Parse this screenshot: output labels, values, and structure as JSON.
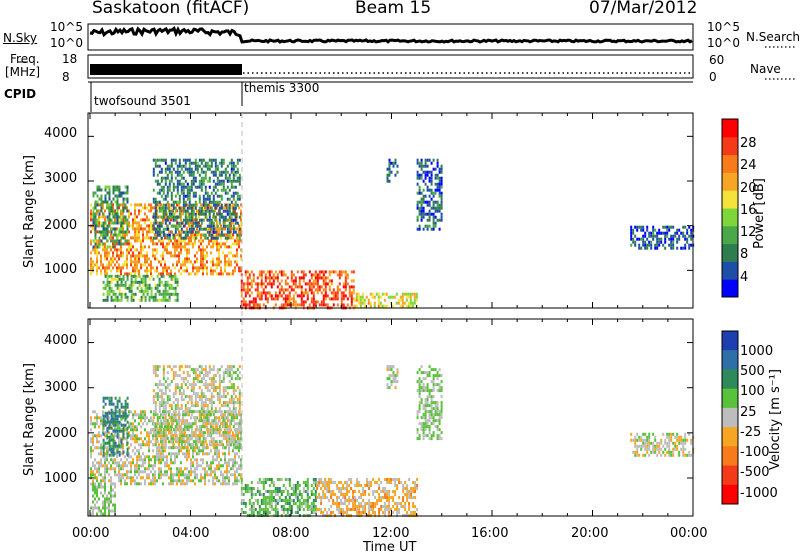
{
  "header": {
    "station": "Saskatoon (fitACF)",
    "beam": "Beam 15",
    "date": "07/Mar/2012"
  },
  "strips": {
    "nsky_label": "N.Sky",
    "nsky_top": "10^5",
    "nsky_bottom": "10^0",
    "nsearch_label": "N.Search",
    "nsearch_top": "10^5",
    "nsearch_bottom": "10^0",
    "freq_label_1": "Freq.",
    "freq_label_2": "[MHz]",
    "freq_top": "18",
    "freq_bottom": "8",
    "nave_label": "Nave",
    "nave_top": "60",
    "nave_bottom": "0",
    "cpid_label": "CPID",
    "cpid_modes": [
      {
        "name": "twofsound 3501",
        "start_hour": 0,
        "end_hour": 6
      },
      {
        "name": "themis 3300",
        "start_hour": 6,
        "end_hour": 24
      }
    ]
  },
  "chart_data": [
    {
      "type": "heatmap",
      "panel": "power",
      "ylabel": "Slant Range [km]",
      "ylim": [
        180,
        4500
      ],
      "yticks": [
        "1000",
        "2000",
        "3000",
        "4000"
      ],
      "colorbar_label": "Power [dB]",
      "colorbar_ticks": [
        "4",
        "8",
        "12",
        "16",
        "20",
        "24",
        "28"
      ],
      "colorbar_range": [
        0,
        32
      ],
      "colors": [
        "#0000ff",
        "#1e4fa8",
        "#2e7d4f",
        "#4aa84a",
        "#7fd63a",
        "#f6e33a",
        "#f6a623",
        "#f77b1a",
        "#f53a1a",
        "#ff0000"
      ],
      "regions": [
        {
          "t0": 0.0,
          "t1": 6.0,
          "r0": 900,
          "r1": 2500,
          "value": 22
        },
        {
          "t0": 0.1,
          "t1": 1.5,
          "r0": 1500,
          "r1": 2900,
          "value": 10
        },
        {
          "t0": 0.5,
          "t1": 3.5,
          "r0": 350,
          "r1": 900,
          "value": 12
        },
        {
          "t0": 2.5,
          "t1": 6.0,
          "r0": 1700,
          "r1": 3500,
          "value": 8
        },
        {
          "t0": 6.0,
          "t1": 10.5,
          "r0": 180,
          "r1": 1000,
          "value": 26
        },
        {
          "t0": 10.5,
          "t1": 13.0,
          "r0": 180,
          "r1": 500,
          "value": 18
        },
        {
          "t0": 11.8,
          "t1": 12.2,
          "r0": 3000,
          "r1": 3500,
          "value": 6
        },
        {
          "t0": 13.0,
          "t1": 14.0,
          "r0": 1900,
          "r1": 3500,
          "value": 6
        },
        {
          "t0": 21.5,
          "t1": 24.0,
          "r0": 1500,
          "r1": 2000,
          "value": 5
        }
      ]
    },
    {
      "type": "heatmap",
      "panel": "velocity",
      "ylabel": "Slant Range [km]",
      "ylim": [
        180,
        4500
      ],
      "yticks": [
        "1000",
        "2000",
        "3000",
        "4000"
      ],
      "colorbar_label": "Velocity [m s⁻¹]",
      "colorbar_ticks": [
        "1000",
        "500",
        "100",
        "25",
        "-25",
        "-100",
        "-500",
        "-1000"
      ],
      "colorbar_range": [
        1200,
        -1200
      ],
      "colors": [
        "#1e3fb0",
        "#2e6fa8",
        "#2e8a5a",
        "#59c23a",
        "#bdbdbd",
        "#f6a623",
        "#f77b1a",
        "#f53a1a",
        "#ff0000"
      ],
      "regions": [
        {
          "t0": 0.0,
          "t1": 6.0,
          "r0": 900,
          "r1": 2500,
          "value": 0
        },
        {
          "t0": 0.0,
          "t1": 1.0,
          "r0": 180,
          "r1": 900,
          "value": 150
        },
        {
          "t0": 0.5,
          "t1": 1.5,
          "r0": 1500,
          "r1": 2800,
          "value": 600
        },
        {
          "t0": 2.5,
          "t1": 6.0,
          "r0": 1700,
          "r1": 3500,
          "value": 0
        },
        {
          "t0": 6.0,
          "t1": 9.0,
          "r0": 180,
          "r1": 1000,
          "value": 300
        },
        {
          "t0": 9.0,
          "t1": 13.0,
          "r0": 180,
          "r1": 1000,
          "value": -200
        },
        {
          "t0": 11.8,
          "t1": 12.2,
          "r0": 3000,
          "r1": 3500,
          "value": 100
        },
        {
          "t0": 13.0,
          "t1": 14.0,
          "r0": 1900,
          "r1": 3500,
          "value": 150
        },
        {
          "t0": 21.5,
          "t1": 24.0,
          "r0": 1500,
          "r1": 2000,
          "value": 0
        }
      ]
    }
  ],
  "xaxis": {
    "ticks": [
      "00:00",
      "04:00",
      "08:00",
      "12:00",
      "16:00",
      "20:00",
      "00:00"
    ],
    "label": "Time UT",
    "xlim": [
      0,
      24
    ]
  }
}
